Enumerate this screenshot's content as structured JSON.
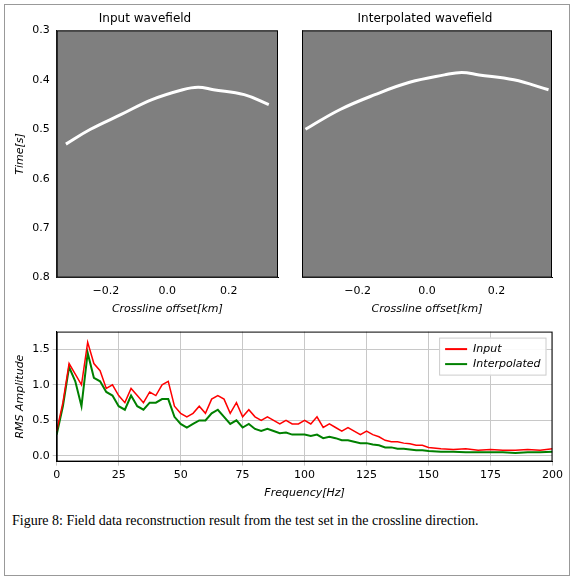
{
  "caption": "Figure 8: Field data reconstruction result from the test set in the crossline direction.",
  "chart_data": [
    {
      "type": "image",
      "title": "Input wavefield",
      "x_label": "Crossline offset[km]",
      "y_label": "Time[s]",
      "x": [
        -0.33,
        -0.25,
        -0.15,
        -0.05,
        0.05,
        0.1,
        0.15,
        0.25,
        0.33
      ],
      "values": [
        0.53,
        0.5,
        0.47,
        0.44,
        0.42,
        0.415,
        0.42,
        0.43,
        0.45
      ],
      "color": "#ffffff",
      "xlim": [
        -0.36,
        0.36
      ],
      "ylim": [
        0.8,
        0.3
      ],
      "xticks": [
        {
          "value": -0.2,
          "label": "−0.2"
        },
        {
          "value": 0,
          "label": "0.0"
        },
        0.2
      ],
      "yticks": [
        0.3,
        0.4,
        0.5,
        0.6,
        0.7,
        0.8
      ],
      "grid": false
    },
    {
      "type": "image",
      "title": "Interpolated wavefield",
      "x_label": "Crossline offset[km]",
      "x": [
        -0.35,
        -0.25,
        -0.15,
        -0.05,
        0.05,
        0.1,
        0.15,
        0.25,
        0.35
      ],
      "values": [
        0.5,
        0.46,
        0.43,
        0.405,
        0.39,
        0.385,
        0.39,
        0.4,
        0.42
      ],
      "color": "#ffffff",
      "xlim": [
        -0.36,
        0.36
      ],
      "ylim": [
        0.8,
        0.3
      ],
      "xticks": [
        {
          "value": -0.2,
          "label": "−0.2"
        },
        {
          "value": 0,
          "label": "0.0"
        },
        0.2
      ],
      "tick_labels": "x",
      "grid": false
    },
    {
      "type": "line",
      "x_label": "Frequency[Hz]",
      "y_label": "RMS Amplitude",
      "x": [
        0,
        2.5,
        5,
        7.5,
        10,
        12.5,
        15,
        17.5,
        20,
        22.5,
        25,
        27.5,
        30,
        32.5,
        35,
        37.5,
        40,
        42.5,
        45,
        47.5,
        50,
        52.5,
        55,
        57.5,
        60,
        62.5,
        65,
        67.5,
        70,
        72.5,
        75,
        77.5,
        80,
        82.5,
        85,
        87.5,
        90,
        92.5,
        95,
        97.5,
        100,
        102.5,
        105,
        107.5,
        110,
        112.5,
        115,
        117.5,
        120,
        122.5,
        125,
        127.5,
        130,
        132.5,
        135,
        137.5,
        140,
        142.5,
        145,
        147.5,
        150,
        155,
        160,
        165,
        170,
        175,
        180,
        185,
        190,
        195,
        200
      ],
      "series": [
        {
          "name": "Input",
          "color": "#ff0000",
          "values": [
            0.35,
            0.75,
            1.3,
            1.15,
            1.0,
            1.6,
            1.3,
            1.2,
            0.95,
            1.0,
            0.85,
            0.75,
            0.95,
            0.85,
            0.75,
            0.9,
            0.85,
            1.0,
            1.05,
            0.7,
            0.6,
            0.55,
            0.6,
            0.7,
            0.6,
            0.8,
            0.85,
            0.8,
            0.6,
            0.75,
            0.55,
            0.65,
            0.55,
            0.5,
            0.55,
            0.5,
            0.45,
            0.5,
            0.45,
            0.45,
            0.5,
            0.45,
            0.55,
            0.4,
            0.45,
            0.4,
            0.35,
            0.4,
            0.35,
            0.3,
            0.35,
            0.3,
            0.27,
            0.22,
            0.2,
            0.2,
            0.18,
            0.17,
            0.15,
            0.15,
            0.12,
            0.1,
            0.09,
            0.1,
            0.08,
            0.09,
            0.08,
            0.08,
            0.09,
            0.08,
            0.1
          ]
        },
        {
          "name": "Interpolated",
          "color": "#008000",
          "values": [
            0.3,
            0.7,
            1.25,
            1.05,
            0.7,
            1.45,
            1.1,
            1.05,
            0.9,
            0.85,
            0.7,
            0.65,
            0.85,
            0.7,
            0.65,
            0.75,
            0.75,
            0.8,
            0.8,
            0.55,
            0.45,
            0.4,
            0.45,
            0.5,
            0.5,
            0.6,
            0.65,
            0.55,
            0.45,
            0.5,
            0.4,
            0.45,
            0.38,
            0.35,
            0.38,
            0.35,
            0.32,
            0.33,
            0.3,
            0.3,
            0.3,
            0.28,
            0.3,
            0.25,
            0.27,
            0.25,
            0.22,
            0.22,
            0.2,
            0.18,
            0.18,
            0.16,
            0.15,
            0.12,
            0.12,
            0.1,
            0.1,
            0.09,
            0.08,
            0.08,
            0.07,
            0.06,
            0.06,
            0.05,
            0.05,
            0.05,
            0.05,
            0.04,
            0.05,
            0.05,
            0.06
          ]
        }
      ],
      "xlim": [
        0,
        200
      ],
      "ylim": [
        -0.08,
        1.75
      ],
      "xticks": [
        0,
        25,
        50,
        75,
        100,
        125,
        150,
        175,
        200
      ],
      "yticks": [
        {
          "value": 0,
          "label": "0.0"
        },
        0.5,
        {
          "value": 1,
          "label": "1.0"
        },
        1.5
      ],
      "grid": true,
      "legend": "upper right"
    }
  ]
}
